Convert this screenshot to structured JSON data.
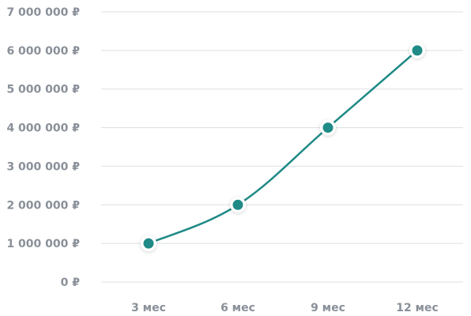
{
  "chart_data": {
    "type": "line",
    "title": "",
    "xlabel": "",
    "ylabel": "",
    "categories": [
      "3 мес",
      "6 мес",
      "9 мес",
      "12 мес"
    ],
    "series": [
      {
        "values": [
          1000000,
          2000000,
          4000000,
          6000000
        ]
      }
    ],
    "ylim": [
      0,
      7000000
    ],
    "yticks": [
      0,
      1000000,
      2000000,
      3000000,
      4000000,
      5000000,
      6000000,
      7000000
    ],
    "ytick_labels": [
      "0 ₽",
      "1 000 000 ₽",
      "2 000 000 ₽",
      "3 000 000 ₽",
      "4 000 000 ₽",
      "5 000 000 ₽",
      "6 000 000 ₽",
      "7 000 000 ₽"
    ],
    "grid": true,
    "legend": "none",
    "colors": {
      "line": "#1f8a86",
      "marker_fill": "#1f8a86",
      "marker_ring": "#ffffff",
      "grid": "#dcdfe3",
      "tick_text": "#8a9099"
    }
  }
}
